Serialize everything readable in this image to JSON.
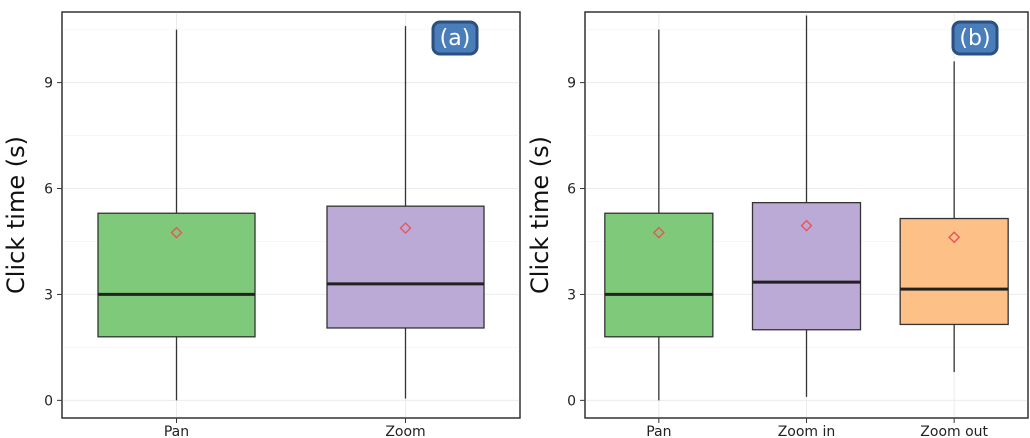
{
  "chart_data": [
    {
      "type": "box",
      "panel_label": "(a)",
      "ylabel": "Click time (s)",
      "ylim": [
        -0.5,
        11
      ],
      "yticks": [
        0,
        3,
        6,
        9
      ],
      "grid": true,
      "categories": [
        "Pan",
        "Zoom"
      ],
      "boxes": [
        {
          "category": "Pan",
          "whisker_low": 0.0,
          "q1": 1.8,
          "median": 3.0,
          "q3": 5.3,
          "whisker_high": 10.5,
          "mean": 4.75,
          "color": "#7fca7a"
        },
        {
          "category": "Zoom",
          "whisker_low": 0.05,
          "q1": 2.05,
          "median": 3.3,
          "q3": 5.5,
          "whisker_high": 10.6,
          "mean": 4.88,
          "color": "#bcaad6"
        }
      ]
    },
    {
      "type": "box",
      "panel_label": "(b)",
      "ylabel": "Click time (s)",
      "ylim": [
        -0.5,
        11
      ],
      "yticks": [
        0,
        3,
        6,
        9
      ],
      "grid": true,
      "categories": [
        "Pan",
        "Zoom in",
        "Zoom out"
      ],
      "boxes": [
        {
          "category": "Pan",
          "whisker_low": 0.0,
          "q1": 1.8,
          "median": 3.0,
          "q3": 5.3,
          "whisker_high": 10.5,
          "mean": 4.75,
          "color": "#7fca7a"
        },
        {
          "category": "Zoom in",
          "whisker_low": 0.1,
          "q1": 2.0,
          "median": 3.35,
          "q3": 5.6,
          "whisker_high": 10.9,
          "mean": 4.95,
          "color": "#bcaad6"
        },
        {
          "category": "Zoom out",
          "whisker_low": 0.8,
          "q1": 2.15,
          "median": 3.15,
          "q3": 5.15,
          "whisker_high": 9.6,
          "mean": 4.62,
          "color": "#fdc086"
        }
      ]
    }
  ]
}
